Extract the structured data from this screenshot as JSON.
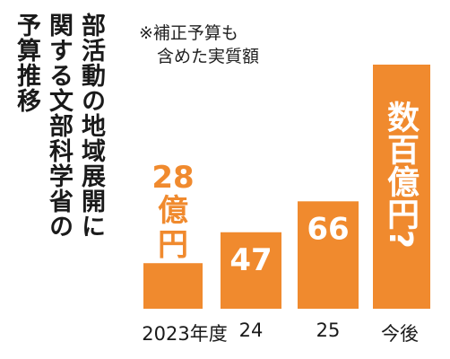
{
  "title_lines": [
    "部活動の地域展開に",
    "関する文部科学省の",
    "予算推移"
  ],
  "note_lines": [
    "※補正予算も",
    "含めた実質額"
  ],
  "colors": {
    "bar": "#f08a2e",
    "text": "#1a1a1a"
  },
  "chart_data": {
    "type": "bar",
    "categories": [
      "2023年度",
      "24",
      "25",
      "今後"
    ],
    "values": [
      28,
      47,
      66,
      null
    ],
    "value_labels": [
      "28億円",
      "47",
      "66",
      "数百億円?"
    ],
    "ylim": [
      0,
      150
    ],
    "grid": false,
    "legend": "none"
  }
}
